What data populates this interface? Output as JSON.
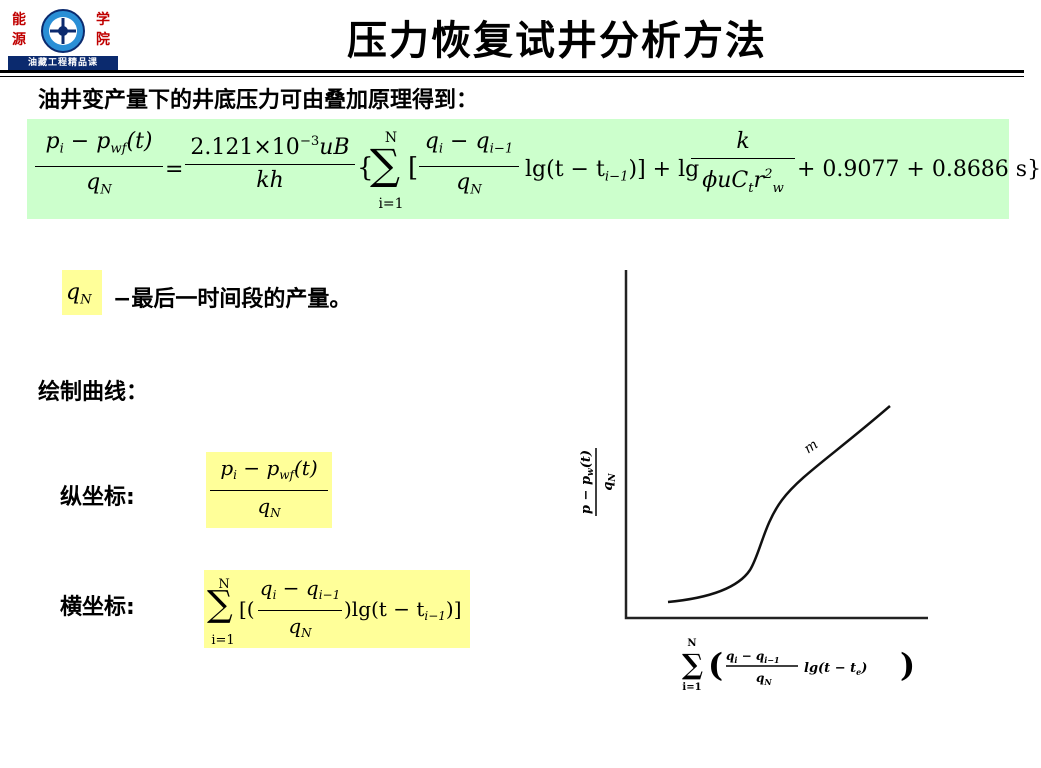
{
  "header": {
    "logo": {
      "char_neng": "能",
      "char_yuan": "源",
      "char_xue": "学",
      "char_yuan2": "院",
      "band_text": "油藏工程精品课"
    },
    "title": "压力恢复试井分析方法"
  },
  "subtitle": "油井变产量下的井底压力可由叠加原理得到：",
  "main_formula": {
    "lhs_num": [
      "p",
      "i",
      " − p",
      "wf",
      "(t)"
    ],
    "lhs_den": "q",
    "lhs_den_sub": "N",
    "equals": "=",
    "coef_num_a": "2.121×10",
    "coef_num_exp": "−3",
    "coef_num_b": "uB",
    "coef_den": "kh",
    "brace_open": "{",
    "sum_top": "N",
    "sum_sym": "∑",
    "sum_bottom": "i=1",
    "bracket_open": "[",
    "inner_num_q1": "q",
    "inner_num_sub1": "i",
    "inner_num_mid": " − q",
    "inner_num_sub2": "i−1",
    "inner_den": "q",
    "inner_den_sub": "N",
    "lg_part": "lg(t − t",
    "lg_sub": "i−1",
    "lg_close": ")] + lg",
    "k_num": "k",
    "k_den_a": "ϕuC",
    "k_den_sub_t": "t",
    "k_den_r": "r",
    "k_den_sup": "2",
    "k_den_sub_w": "w",
    "tail": "+ 0.9077 + 0.8686 s}"
  },
  "qn_symbol": {
    "q": "q",
    "sub": "N"
  },
  "qn_desc": "−最后一时间段的产量。",
  "draw_label": "绘制曲线：",
  "y_axis_label": "纵坐标:",
  "x_axis_label": "横坐标:",
  "y_formula": {
    "num_p": "p",
    "num_i": "i",
    "num_mid": " − p",
    "num_wf": "wf",
    "num_t": "(t)",
    "den_q": "q",
    "den_n": "N"
  },
  "x_formula": {
    "sum_top": "N",
    "sum_sym": "∑",
    "sum_bottom": "i=1",
    "open": "[(",
    "num_q": "q",
    "num_i": "i",
    "num_mid": " − q",
    "num_i1": "i−1",
    "den_q": "q",
    "den_n": "N",
    "close": ")lg(t − t",
    "sub": "i−1",
    "end": ")]"
  },
  "graph": {
    "y_label_num": "p − p",
    "y_label_wf": "w",
    "y_label_t": "(t)",
    "y_label_den": "q",
    "y_label_den_sub": "N",
    "curve_label": "m",
    "x_label_sum_top": "N",
    "x_label_sum": "∑",
    "x_label_sum_bottom": "i=1",
    "x_label_num": "q",
    "x_label_num_i": "i",
    "x_label_num_mid": " − q",
    "x_label_num_i1": "i−1",
    "x_label_den": "q",
    "x_label_den_n": "N",
    "x_label_lg": "lg(t − t",
    "x_label_lg_sub": "e",
    "x_label_lg_close": ")"
  }
}
